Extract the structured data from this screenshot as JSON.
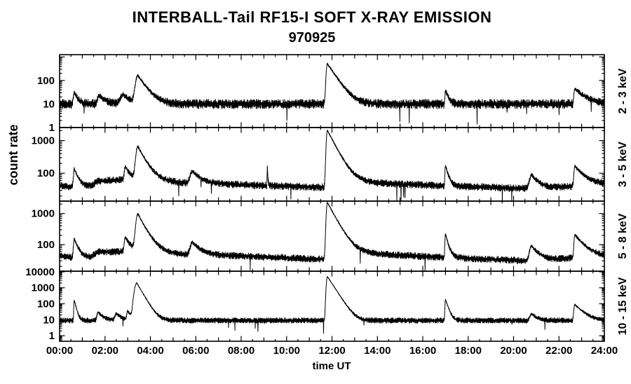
{
  "chart": {
    "title": "INTERBALL-Tail RF15-I SOFT X-RAY EMISSION",
    "subtitle": "970925",
    "ylabel": "count rate",
    "xlabel": "time UT"
  },
  "chart_data": {
    "type": "line",
    "title": "INTERBALL-Tail RF15-I SOFT X-RAY EMISSION",
    "subtitle": "970925",
    "xlabel": "time UT",
    "ylabel": "count rate",
    "grid": false,
    "line_color": "#000000",
    "background": "#ffffff",
    "x_range_hours": [
      0,
      24
    ],
    "x_major_tick_step_hours": 2,
    "x_minor_tick_step_hours": 0.5,
    "x_tick_labels": [
      "00:00",
      "02:00",
      "04:00",
      "06:00",
      "08:00",
      "10:00",
      "12:00",
      "14:00",
      "16:00",
      "18:00",
      "20:00",
      "22:00",
      "24:00"
    ],
    "panels": [
      {
        "label": "2 - 3 keV",
        "yscale": "log",
        "ylim": [
          1,
          1250
        ],
        "ytick_labels": [
          "1",
          "10",
          "100"
        ],
        "noise_dex": 0.2,
        "baseline_counts": [
          [
            0,
            10
          ],
          [
            24,
            10
          ]
        ],
        "flares": [
          {
            "t": 0.65,
            "peak": 20,
            "rise_h": 0.12,
            "decay_h": 0.15
          },
          {
            "t": 1.75,
            "peak": 13,
            "rise_h": 0.2,
            "decay_h": 0.25
          },
          {
            "t": 2.8,
            "peak": 15,
            "rise_h": 0.3,
            "decay_h": 0.3
          },
          {
            "t": 3.45,
            "peak": 150,
            "rise_h": 0.25,
            "decay_h": 0.3
          },
          {
            "t": 11.8,
            "peak": 500,
            "rise_h": 0.12,
            "decay_h": 0.3
          },
          {
            "t": 17.0,
            "peak": 28,
            "rise_h": 0.06,
            "decay_h": 0.12
          },
          {
            "t": 22.7,
            "peak": 35,
            "rise_h": 0.1,
            "decay_h": 0.4
          }
        ]
      },
      {
        "label": "3 - 5 keV",
        "yscale": "log",
        "ylim": [
          14,
          2500
        ],
        "ytick_labels": [
          "100",
          "1000"
        ],
        "noise_dex": 0.11,
        "baseline_counts": [
          [
            0,
            42
          ],
          [
            0.9,
            35
          ],
          [
            1.4,
            40
          ],
          [
            1.7,
            58
          ],
          [
            2.5,
            62
          ],
          [
            3.1,
            66
          ],
          [
            4.3,
            58
          ],
          [
            5.5,
            50
          ],
          [
            7,
            47
          ],
          [
            9,
            42
          ],
          [
            11.5,
            37
          ],
          [
            13.3,
            50
          ],
          [
            14.5,
            48
          ],
          [
            16.5,
            42
          ],
          [
            18.5,
            38
          ],
          [
            20.3,
            34
          ],
          [
            21.5,
            35
          ],
          [
            23,
            42
          ],
          [
            24,
            46
          ]
        ],
        "flares": [
          {
            "t": 0.65,
            "peak": 100,
            "rise_h": 0.1,
            "decay_h": 0.18
          },
          {
            "t": 2.9,
            "peak": 95,
            "rise_h": 0.12,
            "decay_h": 0.18
          },
          {
            "t": 3.45,
            "peak": 600,
            "rise_h": 0.22,
            "decay_h": 0.3
          },
          {
            "t": 5.85,
            "peak": 66,
            "rise_h": 0.25,
            "decay_h": 0.35
          },
          {
            "t": 9.15,
            "peak": 140,
            "rise_h": 0.02,
            "decay_h": 0.02
          },
          {
            "t": 11.8,
            "peak": 2000,
            "rise_h": 0.12,
            "decay_h": 0.32
          },
          {
            "t": 17.0,
            "peak": 135,
            "rise_h": 0.06,
            "decay_h": 0.12
          },
          {
            "t": 20.8,
            "peak": 55,
            "rise_h": 0.25,
            "decay_h": 0.3
          },
          {
            "t": 22.7,
            "peak": 125,
            "rise_h": 0.1,
            "decay_h": 0.4
          }
        ]
      },
      {
        "label": "5 - 8 keV",
        "yscale": "log",
        "ylim": [
          14,
          2500
        ],
        "ytick_labels": [
          "100",
          "1000"
        ],
        "noise_dex": 0.11,
        "baseline_counts": [
          [
            0,
            45
          ],
          [
            0.9,
            35
          ],
          [
            1.4,
            40
          ],
          [
            1.7,
            60
          ],
          [
            2.5,
            58
          ],
          [
            3.1,
            68
          ],
          [
            4.3,
            55
          ],
          [
            5.5,
            48
          ],
          [
            7,
            45
          ],
          [
            9,
            40
          ],
          [
            11.5,
            34
          ],
          [
            13.3,
            50
          ],
          [
            14.5,
            48
          ],
          [
            16.5,
            40
          ],
          [
            18.5,
            35
          ],
          [
            20.3,
            31
          ],
          [
            21.5,
            32
          ],
          [
            23,
            39
          ],
          [
            24,
            41
          ]
        ],
        "flares": [
          {
            "t": 0.65,
            "peak": 115,
            "rise_h": 0.1,
            "decay_h": 0.18
          },
          {
            "t": 2.9,
            "peak": 110,
            "rise_h": 0.12,
            "decay_h": 0.18
          },
          {
            "t": 3.45,
            "peak": 900,
            "rise_h": 0.22,
            "decay_h": 0.3
          },
          {
            "t": 5.85,
            "peak": 70,
            "rise_h": 0.25,
            "decay_h": 0.35
          },
          {
            "t": 11.8,
            "peak": 2200,
            "rise_h": 0.12,
            "decay_h": 0.32
          },
          {
            "t": 17.0,
            "peak": 190,
            "rise_h": 0.06,
            "decay_h": 0.12
          },
          {
            "t": 20.8,
            "peak": 60,
            "rise_h": 0.25,
            "decay_h": 0.3
          },
          {
            "t": 22.7,
            "peak": 170,
            "rise_h": 0.1,
            "decay_h": 0.4
          }
        ]
      },
      {
        "label": "10 - 15 keV",
        "yscale": "log",
        "ylim": [
          0.45,
          11000
        ],
        "ytick_labels": [
          "1",
          "10",
          "100",
          "1000",
          "10000"
        ],
        "noise_dex": 0.17,
        "baseline_counts": [
          [
            0,
            9
          ],
          [
            24,
            9
          ]
        ],
        "flares": [
          {
            "t": 0.65,
            "peak": 160,
            "rise_h": 0.05,
            "decay_h": 0.07
          },
          {
            "t": 1.7,
            "peak": 20,
            "rise_h": 0.15,
            "decay_h": 0.2
          },
          {
            "t": 2.5,
            "peak": 16,
            "rise_h": 0.15,
            "decay_h": 0.2
          },
          {
            "t": 3.0,
            "peak": 26,
            "rise_h": 0.1,
            "decay_h": 0.15
          },
          {
            "t": 3.4,
            "peak": 2000,
            "rise_h": 0.22,
            "decay_h": 0.18
          },
          {
            "t": 11.8,
            "peak": 5000,
            "rise_h": 0.1,
            "decay_h": 0.2
          },
          {
            "t": 17.0,
            "peak": 180,
            "rise_h": 0.05,
            "decay_h": 0.1
          },
          {
            "t": 20.8,
            "peak": 15,
            "rise_h": 0.2,
            "decay_h": 0.2
          },
          {
            "t": 22.7,
            "peak": 80,
            "rise_h": 0.1,
            "decay_h": 0.3
          }
        ]
      }
    ]
  }
}
